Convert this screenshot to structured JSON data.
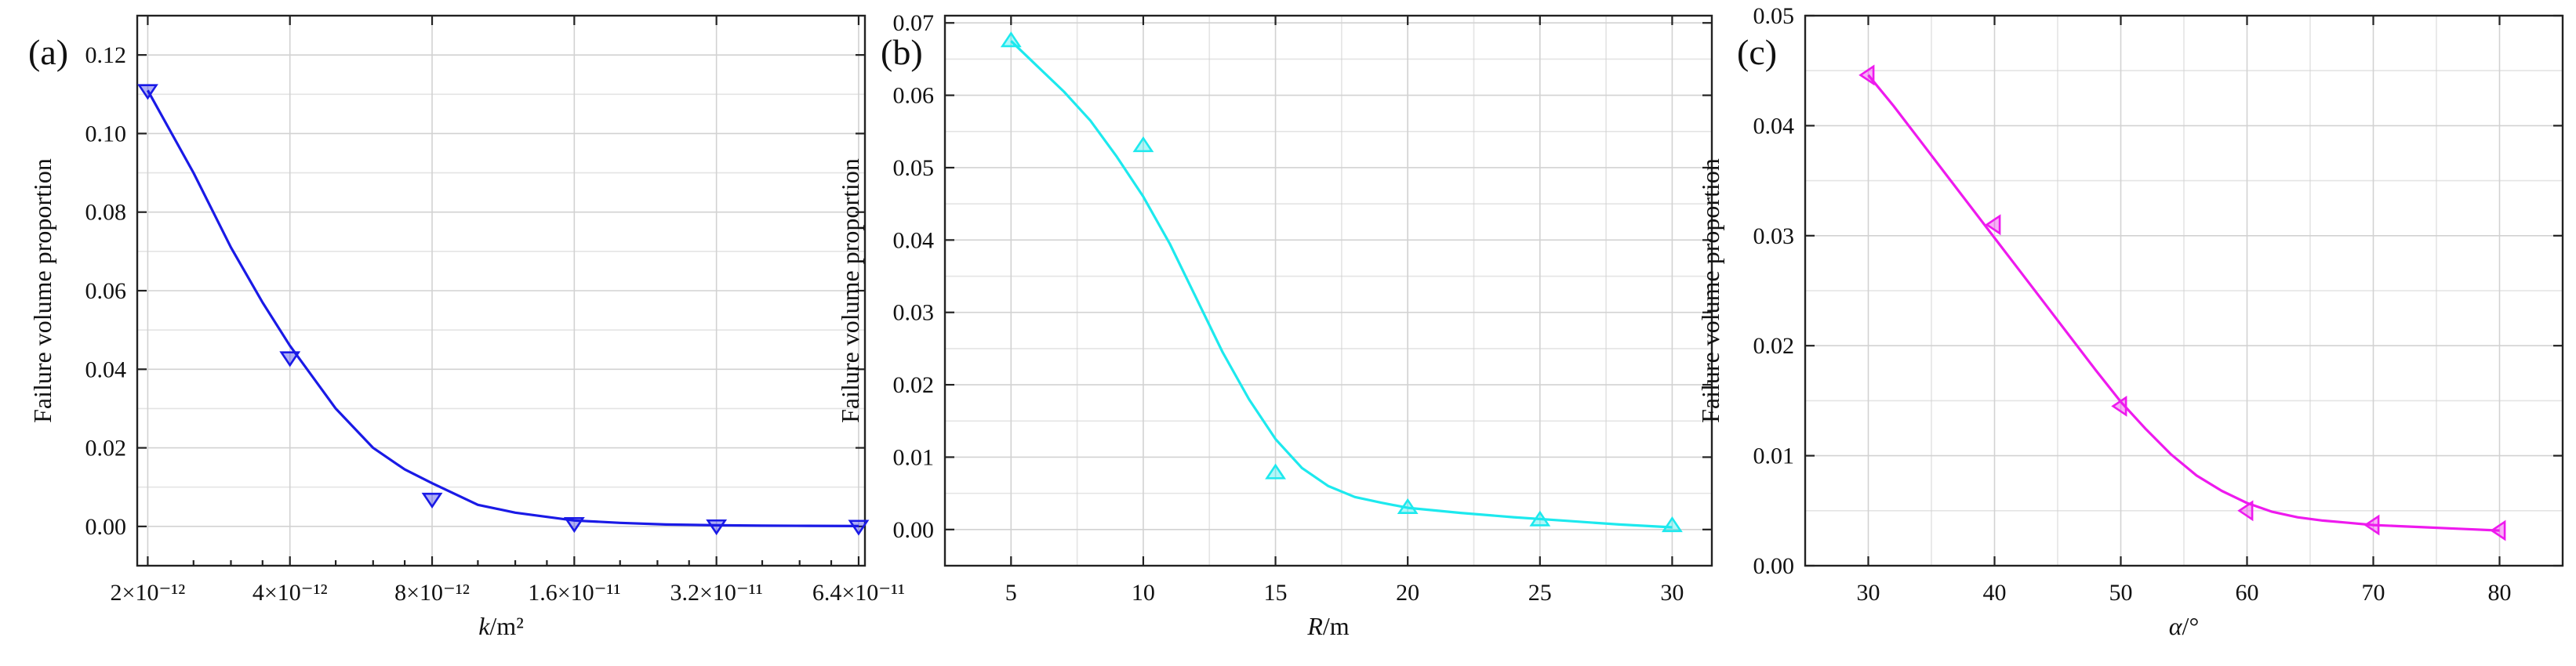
{
  "figure": {
    "panels": [
      {
        "id": "a",
        "panel_label": "(a)",
        "color": "#1a1ae6",
        "chart_data": {
          "type": "scatter",
          "x_scale": "log2",
          "xlim": [
            1.9e-12,
            6.6e-11
          ],
          "ylim": [
            -0.01,
            0.13
          ],
          "xlabel_italic": "k",
          "xlabel_rest": "/m²",
          "ylabel": "Failure volume proportion",
          "x_ticks": [
            2e-12,
            4e-12,
            8e-12,
            1.6e-11,
            3.2e-11,
            6.4e-11
          ],
          "x_tick_labels": [
            "2×10⁻¹²",
            "4×10⁻¹²",
            "8×10⁻¹²",
            "1.6×10⁻¹¹",
            "3.2×10⁻¹¹",
            "6.4×10⁻¹¹"
          ],
          "y_ticks": [
            0.0,
            0.02,
            0.04,
            0.06,
            0.08,
            0.1,
            0.12
          ],
          "y_tick_labels": [
            "0.00",
            "0.02",
            "0.04",
            "0.06",
            "0.08",
            "0.10",
            "0.12"
          ],
          "grid": true,
          "marker": "triangle-down",
          "series": [
            {
              "x": [
                2e-12,
                4e-12,
                8e-12,
                1.6e-11,
                3.2e-11,
                6.4e-11
              ],
              "y": [
                0.111,
                0.043,
                0.007,
                0.0008,
                0.0002,
                0.0001
              ]
            }
          ],
          "fit_curve": {
            "x": [
              2e-12,
              2.5e-12,
              3e-12,
              3.5e-12,
              4e-12,
              5e-12,
              6e-12,
              7e-12,
              8e-12,
              1e-11,
              1.2e-11,
              1.6e-11,
              2e-11,
              2.5e-11,
              3.2e-11,
              4e-11,
              5e-11,
              6.4e-11
            ],
            "y": [
              0.111,
              0.09,
              0.071,
              0.057,
              0.046,
              0.03,
              0.02,
              0.0145,
              0.011,
              0.0055,
              0.0035,
              0.0015,
              0.0009,
              0.0005,
              0.0003,
              0.0002,
              0.00015,
              0.0001
            ]
          }
        }
      },
      {
        "id": "b",
        "panel_label": "(b)",
        "color": "#1de9ee",
        "chart_data": {
          "type": "scatter",
          "x_scale": "linear",
          "xlim": [
            2.5,
            31.5
          ],
          "ylim": [
            -0.005,
            0.071
          ],
          "xlabel_italic": "R",
          "xlabel_rest": "/m",
          "ylabel": "Failure volume proportion",
          "x_ticks": [
            5,
            10,
            15,
            20,
            25,
            30
          ],
          "x_tick_labels": [
            "5",
            "10",
            "15",
            "20",
            "25",
            "30"
          ],
          "y_ticks": [
            0.0,
            0.01,
            0.02,
            0.03,
            0.04,
            0.05,
            0.06,
            0.07
          ],
          "y_tick_labels": [
            "0.00",
            "0.01",
            "0.02",
            "0.03",
            "0.04",
            "0.05",
            "0.06",
            "0.07"
          ],
          "grid": true,
          "marker": "triangle-up",
          "series": [
            {
              "x": [
                5,
                10,
                15,
                20,
                25,
                30
              ],
              "y": [
                0.0675,
                0.053,
                0.0078,
                0.003,
                0.0013,
                0.0005
              ]
            }
          ],
          "fit_curve": {
            "x": [
              5,
              6,
              7,
              8,
              9,
              10,
              11,
              12,
              13,
              14,
              15,
              16,
              17,
              18,
              19,
              20,
              22,
              24,
              26,
              28,
              30
            ],
            "y": [
              0.0675,
              0.064,
              0.0605,
              0.0565,
              0.0515,
              0.046,
              0.0395,
              0.032,
              0.0245,
              0.018,
              0.0125,
              0.0085,
              0.006,
              0.0045,
              0.0037,
              0.003,
              0.0023,
              0.0017,
              0.0012,
              0.0007,
              0.0003
            ]
          }
        }
      },
      {
        "id": "c",
        "panel_label": "(c)",
        "color": "#ee1aee",
        "chart_data": {
          "type": "scatter",
          "x_scale": "linear",
          "xlim": [
            25,
            85
          ],
          "ylim": [
            0.0,
            0.05
          ],
          "xlabel_italic": "α",
          "xlabel_rest": "/°",
          "ylabel": "Failure volume proportion",
          "x_ticks": [
            30,
            40,
            50,
            60,
            70,
            80
          ],
          "x_tick_labels": [
            "30",
            "40",
            "50",
            "60",
            "70",
            "80"
          ],
          "y_ticks": [
            0.0,
            0.01,
            0.02,
            0.03,
            0.04,
            0.05
          ],
          "y_tick_labels": [
            "0.00",
            "0.01",
            "0.02",
            "0.03",
            "0.04",
            "0.05"
          ],
          "grid": true,
          "marker": "triangle-left",
          "series": [
            {
              "x": [
                30,
                40,
                50,
                60,
                70,
                80
              ],
              "y": [
                0.0446,
                0.031,
                0.0145,
                0.005,
                0.0037,
                0.0032
              ]
            }
          ],
          "fit_curve": {
            "x": [
              30,
              32,
              34,
              36,
              38,
              40,
              42,
              44,
              46,
              48,
              50,
              52,
              54,
              56,
              58,
              60,
              62,
              64,
              66,
              68,
              70,
              72,
              74,
              76,
              78,
              80
            ],
            "y": [
              0.0446,
              0.0418,
              0.0388,
              0.0358,
              0.0328,
              0.0298,
              0.0268,
              0.0238,
              0.0208,
              0.0178,
              0.0149,
              0.0124,
              0.0101,
              0.0082,
              0.0068,
              0.0057,
              0.0049,
              0.0044,
              0.0041,
              0.0039,
              0.0037,
              0.0036,
              0.0035,
              0.0034,
              0.0033,
              0.0032
            ]
          }
        }
      }
    ]
  }
}
